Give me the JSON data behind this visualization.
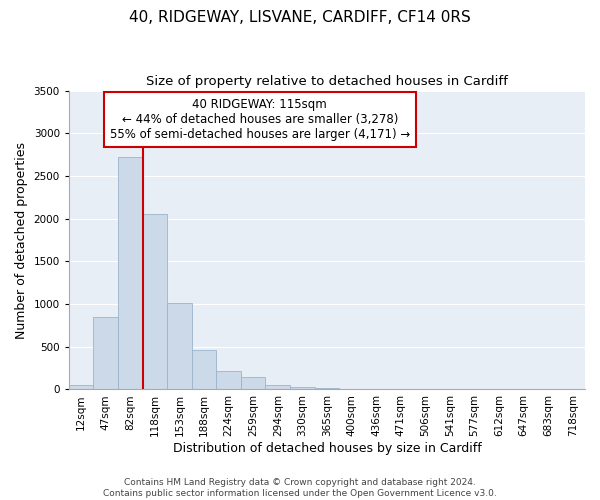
{
  "title": "40, RIDGEWAY, LISVANE, CARDIFF, CF14 0RS",
  "subtitle": "Size of property relative to detached houses in Cardiff",
  "xlabel": "Distribution of detached houses by size in Cardiff",
  "ylabel": "Number of detached properties",
  "bar_labels": [
    "12sqm",
    "47sqm",
    "82sqm",
    "118sqm",
    "153sqm",
    "188sqm",
    "224sqm",
    "259sqm",
    "294sqm",
    "330sqm",
    "365sqm",
    "400sqm",
    "436sqm",
    "471sqm",
    "506sqm",
    "541sqm",
    "577sqm",
    "612sqm",
    "647sqm",
    "683sqm",
    "718sqm"
  ],
  "bar_values": [
    55,
    850,
    2720,
    2060,
    1010,
    460,
    215,
    145,
    55,
    25,
    20,
    10,
    5,
    2,
    1,
    0,
    0,
    0,
    0,
    0,
    0
  ],
  "bar_color": "#ccd9e8",
  "bar_edge_color": "#9ab4cc",
  "vline_x": 2.5,
  "vline_color": "#cc0000",
  "ylim": [
    0,
    3500
  ],
  "yticks": [
    0,
    500,
    1000,
    1500,
    2000,
    2500,
    3000,
    3500
  ],
  "annotation_text": "40 RIDGEWAY: 115sqm\n← 44% of detached houses are smaller (3,278)\n55% of semi-detached houses are larger (4,171) →",
  "annotation_box_color": "#ffffff",
  "annotation_box_edge": "#cc0000",
  "footer_text": "Contains HM Land Registry data © Crown copyright and database right 2024.\nContains public sector information licensed under the Open Government Licence v3.0.",
  "title_fontsize": 11,
  "subtitle_fontsize": 9.5,
  "axis_label_fontsize": 9,
  "tick_fontsize": 7.5,
  "annotation_fontsize": 8.5,
  "footer_fontsize": 6.5,
  "bg_color": "#e8eef5",
  "grid_color": "#ffffff"
}
